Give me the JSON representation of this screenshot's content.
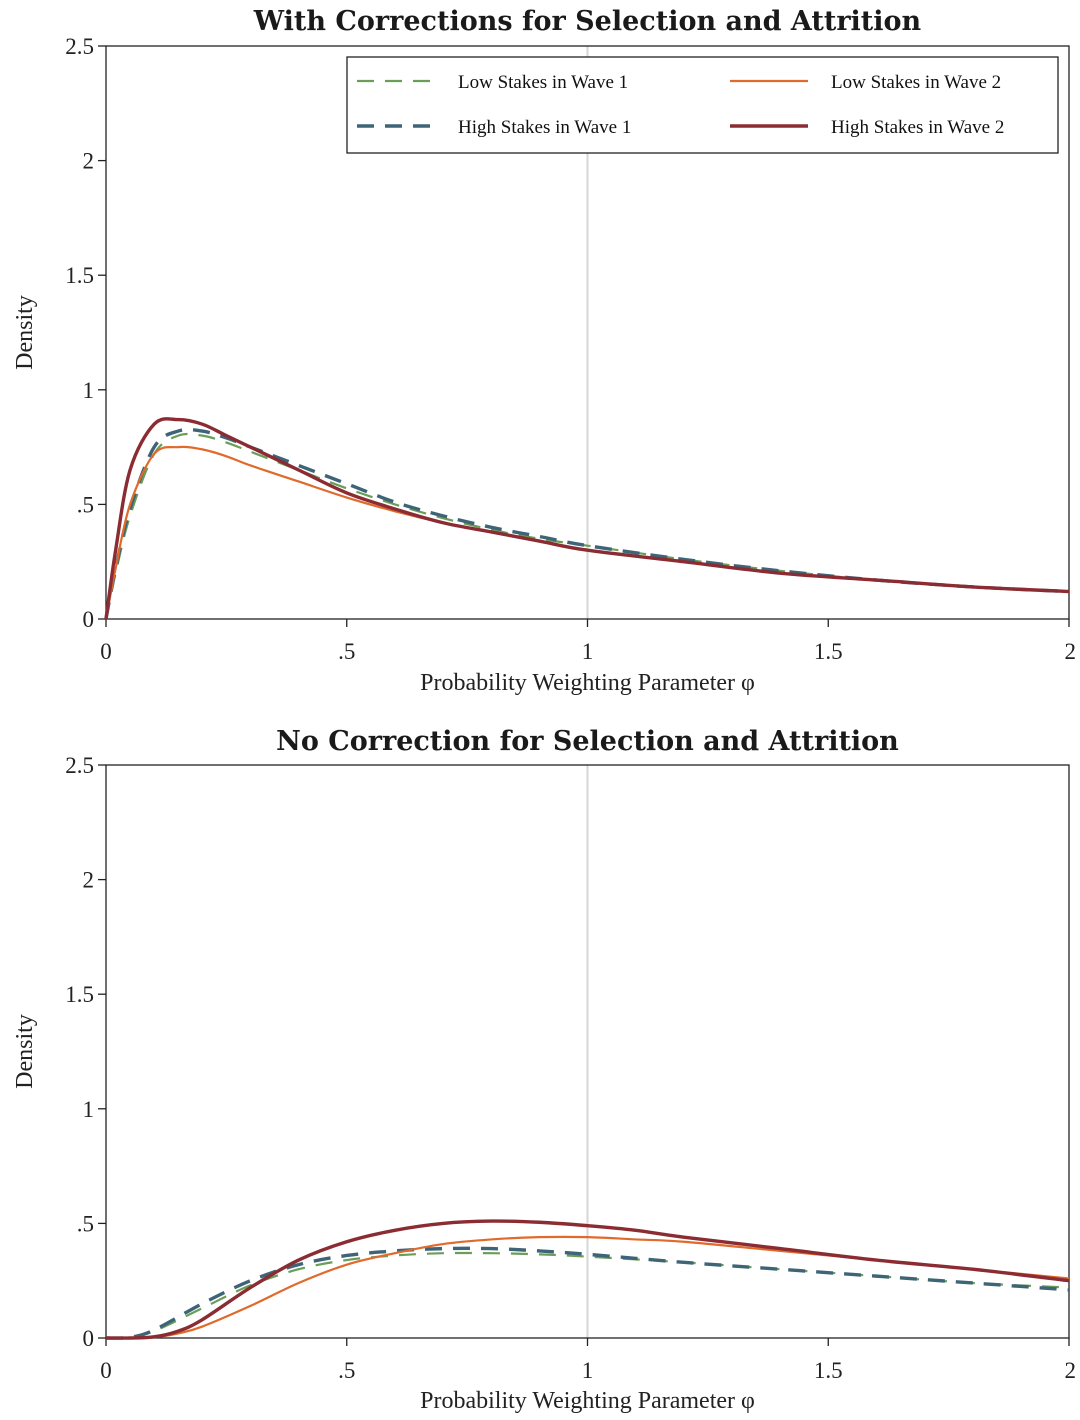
{
  "chart_data": [
    {
      "type": "line",
      "title": "With Corrections for Selection and Attrition",
      "xlabel": "Probability Weighting Parameter φ",
      "ylabel": "Density",
      "xlim": [
        0,
        2
      ],
      "ylim": [
        0,
        2.5
      ],
      "xticks": [
        0,
        0.5,
        1,
        1.5,
        2
      ],
      "xtick_labels": [
        "0",
        ".5",
        "1",
        "1.5",
        "2"
      ],
      "yticks": [
        0,
        0.5,
        1,
        1.5,
        2,
        2.5
      ],
      "ytick_labels": [
        "0",
        ".5",
        "1",
        "1.5",
        "2",
        "2.5"
      ],
      "reference_line_x": 1,
      "grid": false,
      "legend_position": "top-right",
      "series": [
        {
          "name": "Low Stakes in Wave 1",
          "color": "#6a9e58",
          "dash": "dashed",
          "width": "thin",
          "x": [
            0,
            0.02,
            0.05,
            0.1,
            0.15,
            0.2,
            0.25,
            0.3,
            0.4,
            0.5,
            0.6,
            0.7,
            0.8,
            0.9,
            1.0,
            1.2,
            1.4,
            1.6,
            1.8,
            2.0
          ],
          "y": [
            0,
            0.2,
            0.45,
            0.72,
            0.8,
            0.8,
            0.77,
            0.73,
            0.65,
            0.57,
            0.5,
            0.44,
            0.39,
            0.35,
            0.32,
            0.26,
            0.21,
            0.17,
            0.14,
            0.12
          ]
        },
        {
          "name": "High Stakes in Wave 1",
          "color": "#3e6478",
          "dash": "dashed",
          "width": "thick",
          "x": [
            0,
            0.02,
            0.05,
            0.1,
            0.15,
            0.2,
            0.25,
            0.3,
            0.4,
            0.5,
            0.6,
            0.7,
            0.8,
            0.9,
            1.0,
            1.2,
            1.4,
            1.6,
            1.8,
            2.0
          ],
          "y": [
            0,
            0.22,
            0.48,
            0.75,
            0.82,
            0.82,
            0.79,
            0.75,
            0.67,
            0.59,
            0.51,
            0.45,
            0.4,
            0.36,
            0.32,
            0.26,
            0.21,
            0.17,
            0.14,
            0.12
          ]
        },
        {
          "name": "Low Stakes in Wave 2",
          "color": "#e06a2c",
          "dash": "solid",
          "width": "thin",
          "x": [
            0,
            0.02,
            0.05,
            0.1,
            0.15,
            0.2,
            0.25,
            0.3,
            0.4,
            0.5,
            0.6,
            0.7,
            0.8,
            0.9,
            1.0,
            1.2,
            1.4,
            1.6,
            1.8,
            2.0
          ],
          "y": [
            0,
            0.22,
            0.5,
            0.72,
            0.75,
            0.74,
            0.71,
            0.67,
            0.6,
            0.53,
            0.47,
            0.42,
            0.38,
            0.34,
            0.3,
            0.25,
            0.2,
            0.17,
            0.14,
            0.12
          ]
        },
        {
          "name": "High Stakes in Wave 2",
          "color": "#8b2b32",
          "dash": "solid",
          "width": "thick",
          "x": [
            0,
            0.02,
            0.05,
            0.1,
            0.15,
            0.2,
            0.25,
            0.3,
            0.4,
            0.5,
            0.6,
            0.7,
            0.8,
            0.9,
            1.0,
            1.2,
            1.4,
            1.6,
            1.8,
            2.0
          ],
          "y": [
            0,
            0.3,
            0.65,
            0.85,
            0.87,
            0.85,
            0.8,
            0.75,
            0.65,
            0.55,
            0.48,
            0.42,
            0.38,
            0.34,
            0.3,
            0.25,
            0.2,
            0.17,
            0.14,
            0.12
          ]
        }
      ]
    },
    {
      "type": "line",
      "title": "No Correction for Selection and Attrition",
      "xlabel": "Probability Weighting Parameter φ",
      "ylabel": "Density",
      "xlim": [
        0,
        2
      ],
      "ylim": [
        0,
        2.5
      ],
      "xticks": [
        0,
        0.5,
        1,
        1.5,
        2
      ],
      "xtick_labels": [
        "0",
        ".5",
        "1",
        "1.5",
        "2"
      ],
      "yticks": [
        0,
        0.5,
        1,
        1.5,
        2,
        2.5
      ],
      "ytick_labels": [
        "0",
        ".5",
        "1",
        "1.5",
        "2",
        "2.5"
      ],
      "reference_line_x": 1,
      "grid": false,
      "legend": "none",
      "series": [
        {
          "name": "Low Stakes in Wave 1",
          "color": "#6a9e58",
          "dash": "dashed",
          "width": "thin",
          "x": [
            0,
            0.05,
            0.1,
            0.2,
            0.3,
            0.4,
            0.5,
            0.6,
            0.7,
            0.8,
            0.9,
            1.0,
            1.2,
            1.4,
            1.6,
            1.8,
            2.0
          ],
          "y": [
            0,
            0.003,
            0.03,
            0.13,
            0.23,
            0.3,
            0.34,
            0.36,
            0.37,
            0.37,
            0.365,
            0.355,
            0.33,
            0.3,
            0.27,
            0.24,
            0.22
          ]
        },
        {
          "name": "High Stakes in Wave 1",
          "color": "#3e6478",
          "dash": "dashed",
          "width": "thick",
          "x": [
            0,
            0.05,
            0.1,
            0.2,
            0.3,
            0.4,
            0.5,
            0.6,
            0.7,
            0.8,
            0.9,
            1.0,
            1.2,
            1.4,
            1.6,
            1.8,
            2.0
          ],
          "y": [
            0,
            0.003,
            0.035,
            0.15,
            0.25,
            0.32,
            0.36,
            0.38,
            0.39,
            0.39,
            0.38,
            0.365,
            0.33,
            0.3,
            0.27,
            0.24,
            0.21
          ]
        },
        {
          "name": "Low Stakes in Wave 2",
          "color": "#e06a2c",
          "dash": "solid",
          "width": "thin",
          "x": [
            0,
            0.05,
            0.1,
            0.15,
            0.2,
            0.3,
            0.4,
            0.5,
            0.6,
            0.7,
            0.8,
            0.9,
            1.0,
            1.1,
            1.2,
            1.4,
            1.6,
            1.8,
            2.0
          ],
          "y": [
            0,
            0.0,
            0.003,
            0.02,
            0.05,
            0.14,
            0.24,
            0.32,
            0.37,
            0.41,
            0.43,
            0.44,
            0.44,
            0.43,
            0.42,
            0.38,
            0.34,
            0.3,
            0.26
          ]
        },
        {
          "name": "High Stakes in Wave 2",
          "color": "#8b2b32",
          "dash": "solid",
          "width": "thick",
          "x": [
            0,
            0.05,
            0.1,
            0.15,
            0.2,
            0.3,
            0.4,
            0.5,
            0.6,
            0.7,
            0.8,
            0.9,
            1.0,
            1.1,
            1.2,
            1.4,
            1.6,
            1.8,
            2.0
          ],
          "y": [
            0,
            0.0,
            0.005,
            0.03,
            0.08,
            0.22,
            0.34,
            0.42,
            0.47,
            0.5,
            0.51,
            0.505,
            0.49,
            0.47,
            0.44,
            0.39,
            0.34,
            0.3,
            0.25
          ]
        }
      ]
    }
  ]
}
